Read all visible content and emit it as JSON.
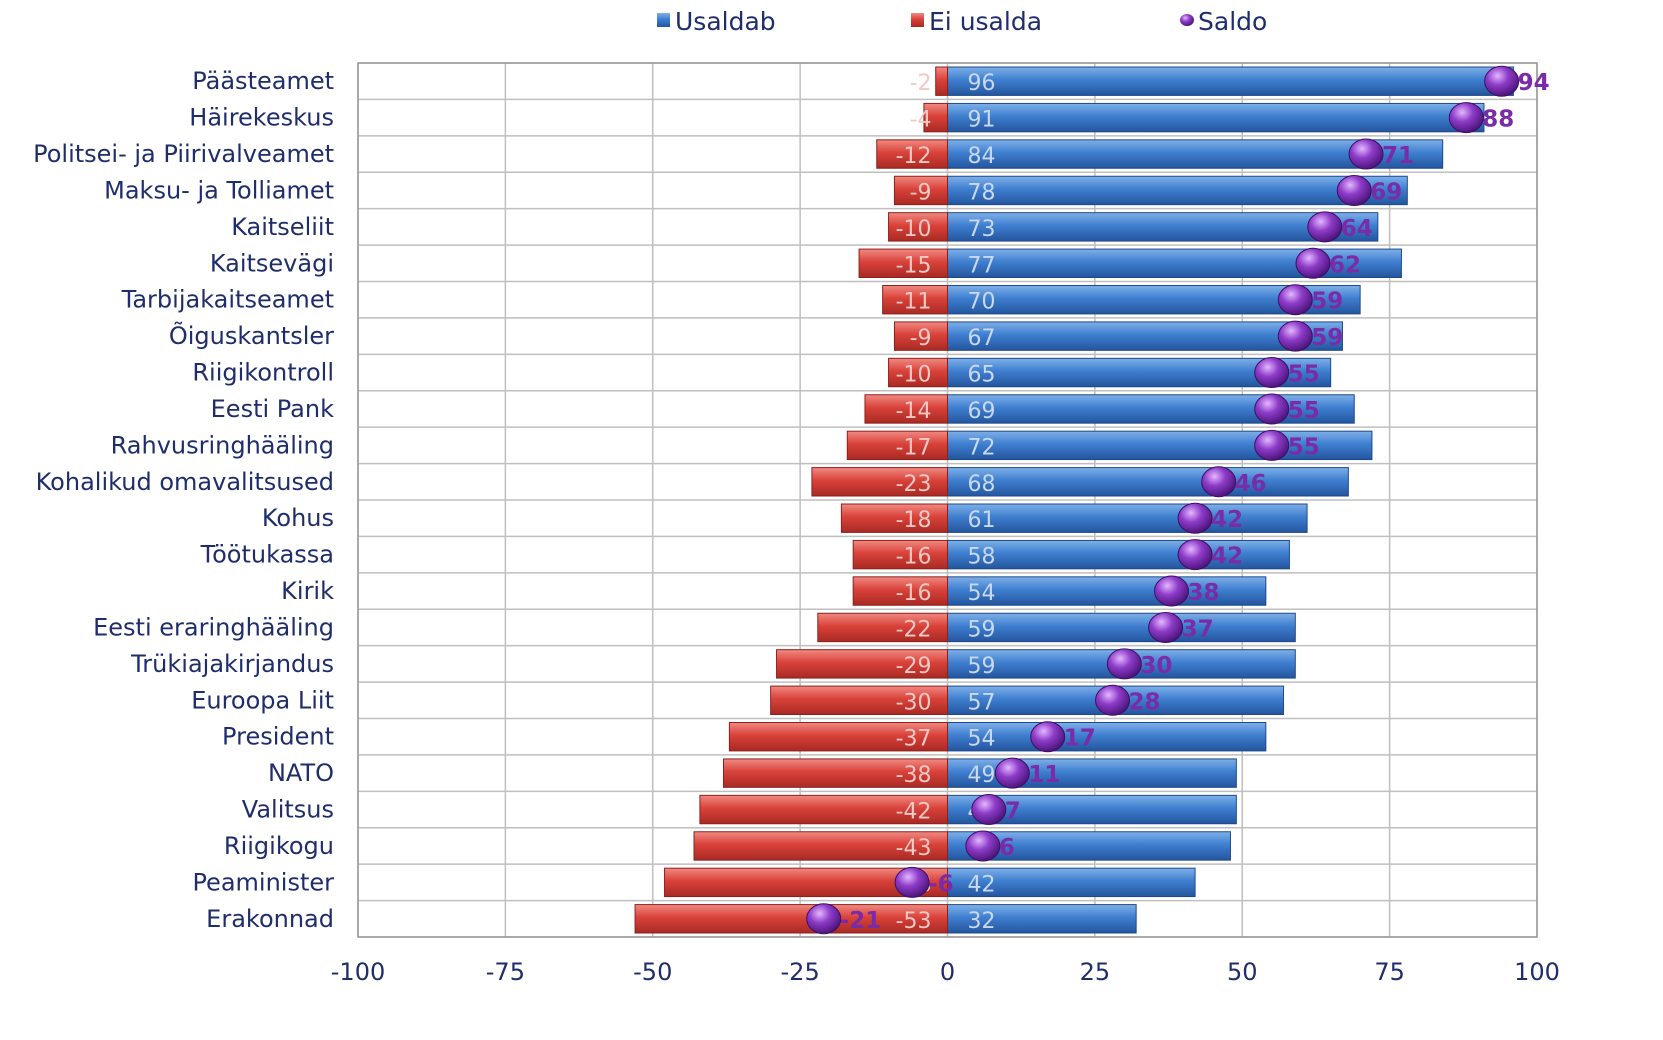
{
  "chart_data": {
    "type": "bar",
    "orientation": "horizontal",
    "title": "",
    "xlabel": "",
    "ylabel": "",
    "xlim": [
      -100,
      100
    ],
    "xticks": [
      -100,
      -75,
      -50,
      -25,
      0,
      25,
      50,
      75,
      100
    ],
    "grid": true,
    "legend_position": "top",
    "categories": [
      "Päästeamet",
      "Häirekeskus",
      "Politsei- ja Piirivalveamet",
      "Maksu- ja Tolliamet",
      "Kaitseliit",
      "Kaitsevägi",
      "Tarbijakaitseamet",
      "Õiguskantsler",
      "Riigikontroll",
      "Eesti Pank",
      "Rahvusringhääling",
      "Kohalikud omavalitsused",
      "Kohus",
      "Töötukassa",
      "Kirik",
      "Eesti eraringhääling",
      "Trükiajakirjandus",
      "Euroopa Liit",
      "President",
      "NATO",
      "Valitsus",
      "Riigikogu",
      "Peaminister",
      "Erakonnad"
    ],
    "series": [
      {
        "name": "Usaldab",
        "color": "#3a75c4",
        "type": "bar",
        "values": [
          96,
          91,
          84,
          78,
          73,
          77,
          70,
          67,
          65,
          69,
          72,
          68,
          61,
          58,
          54,
          59,
          59,
          57,
          54,
          49,
          49,
          48,
          42,
          32
        ]
      },
      {
        "name": "Ei usalda",
        "color": "#d23a35",
        "type": "bar",
        "values": [
          -2,
          -4,
          -12,
          -9,
          -10,
          -15,
          -11,
          -9,
          -10,
          -14,
          -17,
          -23,
          -18,
          -16,
          -16,
          -22,
          -29,
          -30,
          -37,
          -38,
          -42,
          -43,
          -48,
          -53
        ]
      },
      {
        "name": "Saldo",
        "color": "#7a2ca8",
        "type": "marker",
        "values": [
          94,
          88,
          71,
          69,
          64,
          62,
          59,
          59,
          55,
          55,
          55,
          46,
          42,
          42,
          38,
          37,
          30,
          28,
          17,
          11,
          7,
          6,
          -6,
          -21
        ]
      }
    ]
  }
}
